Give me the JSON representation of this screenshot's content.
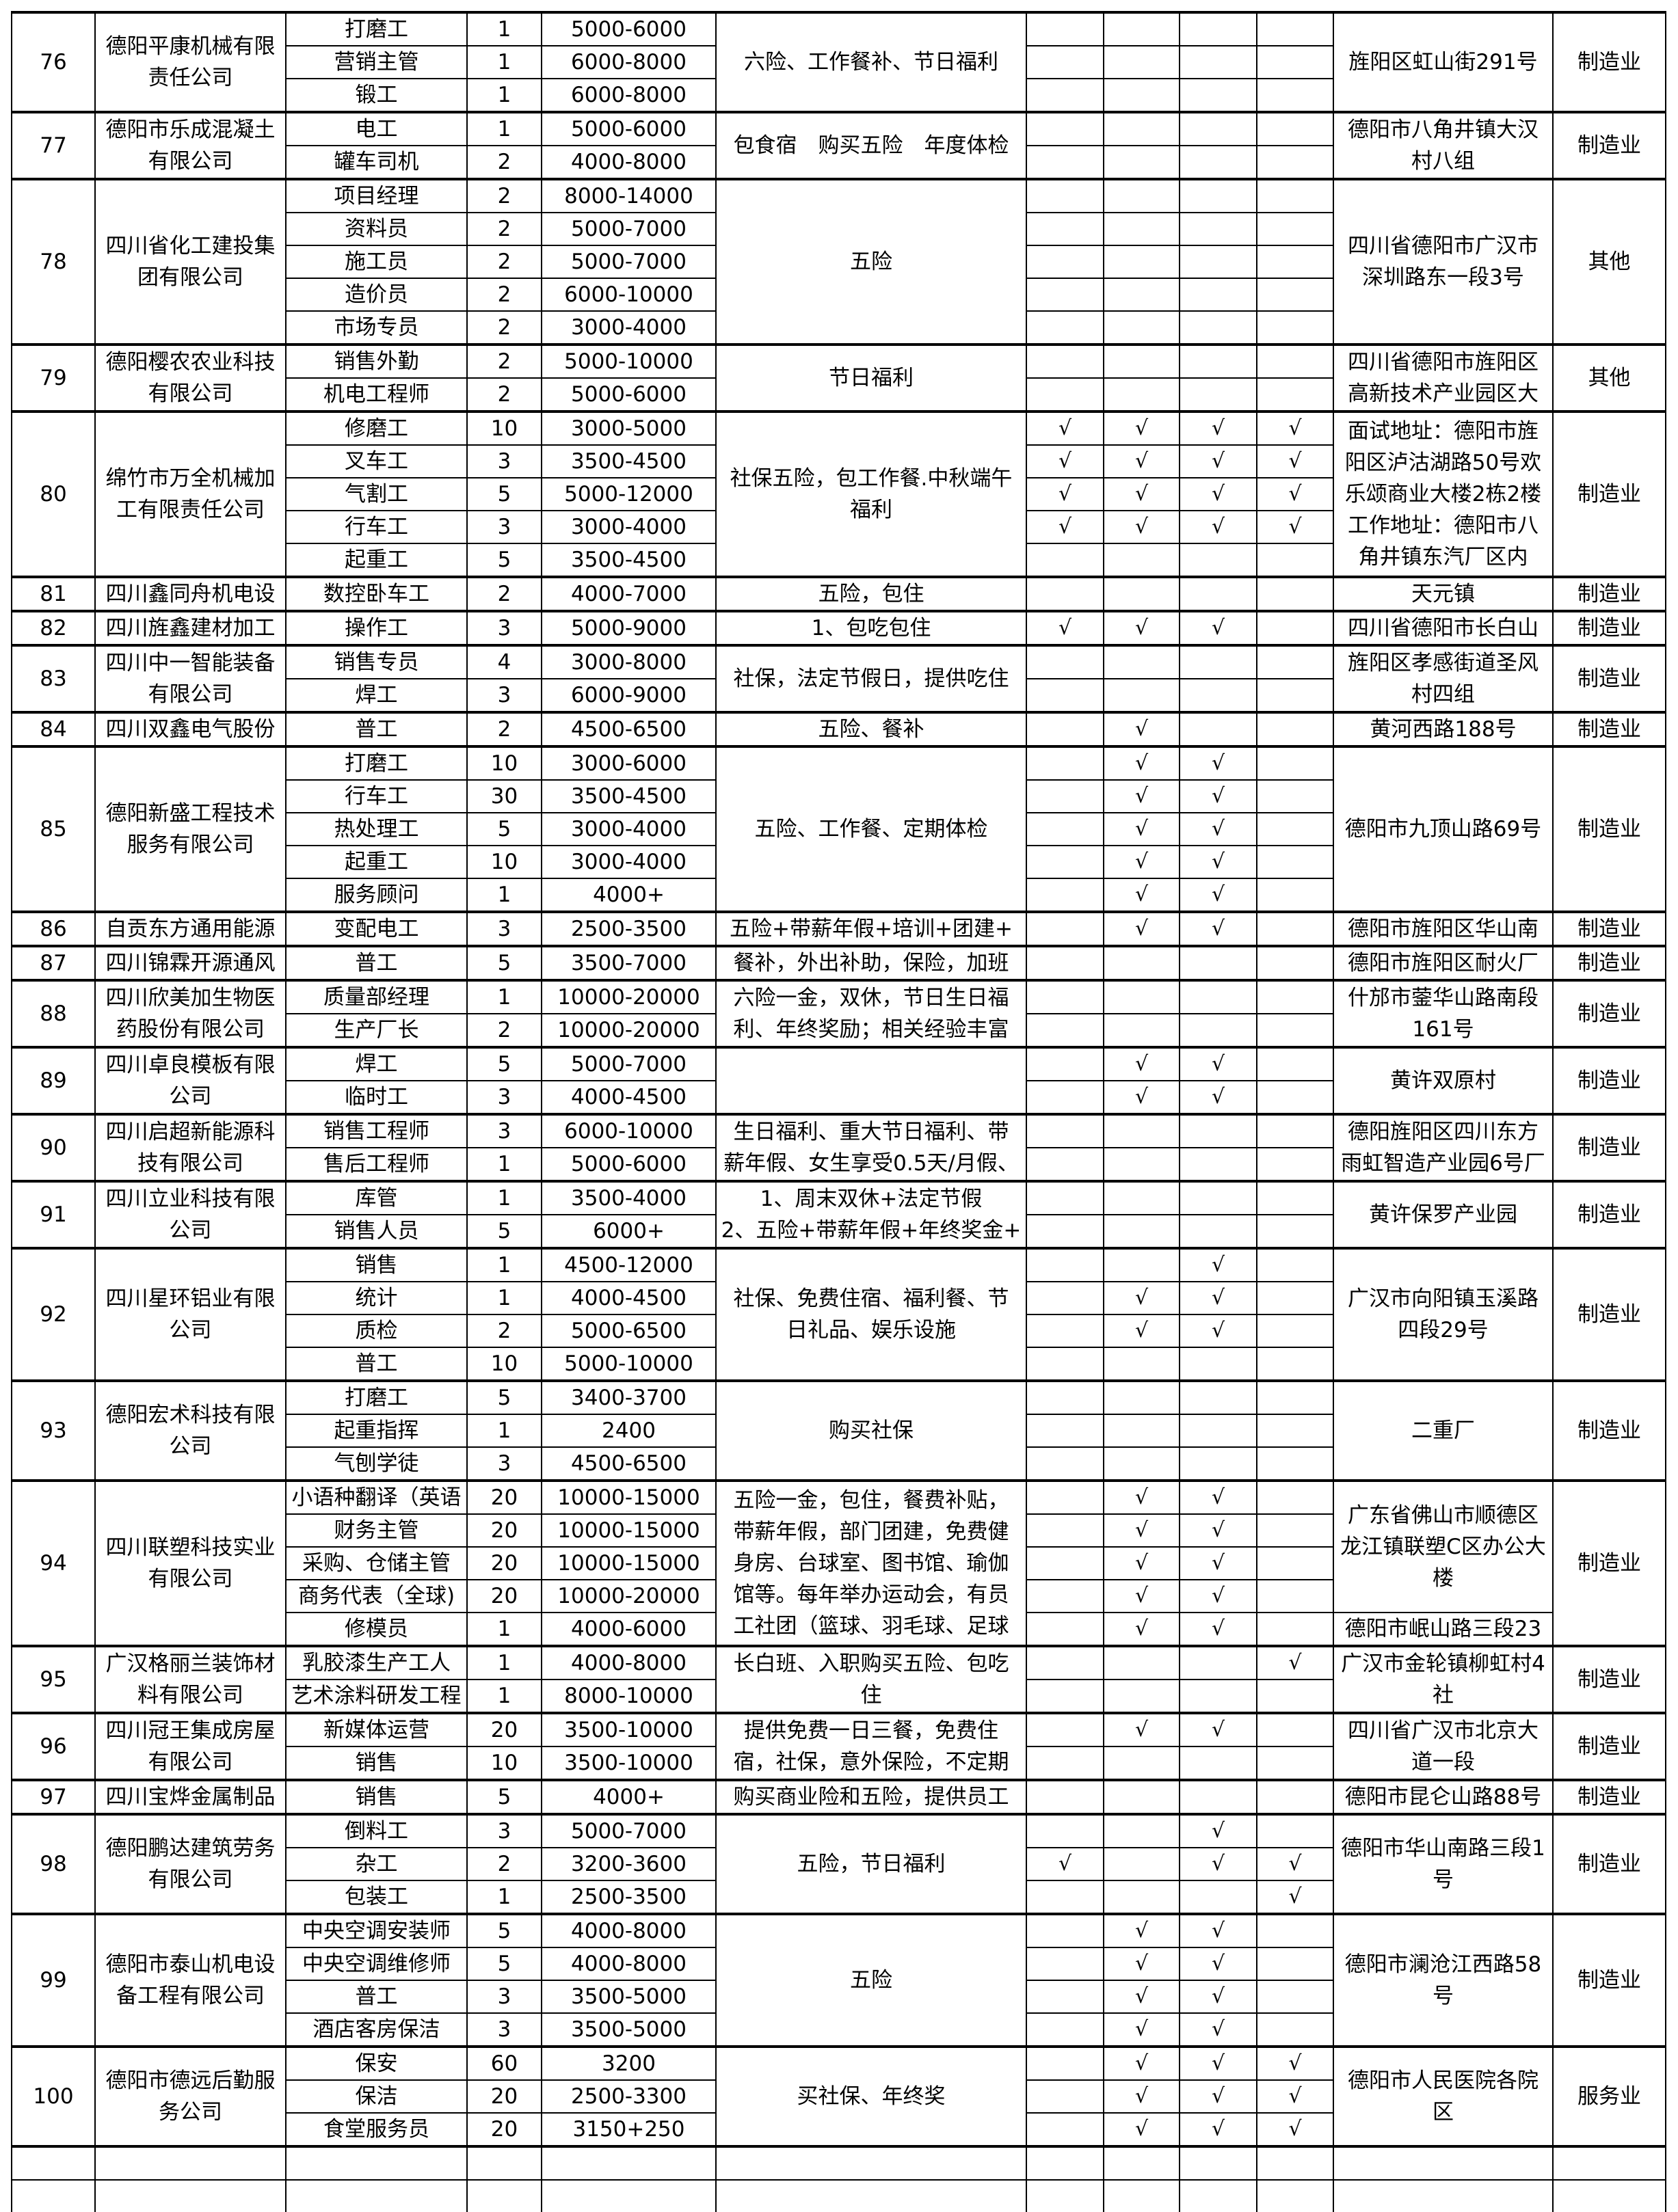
{
  "check_symbol": "√",
  "companies": [
    {
      "no": "76",
      "name": "德阳平康机械有限\n责任公司",
      "benefits": "六险、工作餐补、节日福利",
      "address": [
        {
          "text": "旌阳区虹山街291号",
          "rows": 3
        }
      ],
      "industry": "制造业",
      "positions": [
        {
          "title": "打磨工",
          "count": "1",
          "salary": "5000-6000",
          "checks": [
            0,
            0,
            0,
            0
          ]
        },
        {
          "title": "营销主管",
          "count": "1",
          "salary": "6000-8000",
          "checks": [
            0,
            0,
            0,
            0
          ]
        },
        {
          "title": "锻工",
          "count": "1",
          "salary": "6000-8000",
          "checks": [
            0,
            0,
            0,
            0
          ]
        }
      ]
    },
    {
      "no": "77",
      "name": "德阳市乐成混凝土\n有限公司",
      "benefits": "包食宿　购买五险　年度体检",
      "address": [
        {
          "text": "德阳市八角井镇大汉\n村八组",
          "rows": 2
        }
      ],
      "industry": "制造业",
      "positions": [
        {
          "title": "电工",
          "count": "1",
          "salary": "5000-6000",
          "checks": [
            0,
            0,
            0,
            0
          ]
        },
        {
          "title": "罐车司机",
          "count": "2",
          "salary": "4000-8000",
          "checks": [
            0,
            0,
            0,
            0
          ]
        }
      ]
    },
    {
      "no": "78",
      "name": "四川省化工建投集\n团有限公司",
      "benefits": "五险",
      "address": [
        {
          "text": "四川省德阳市广汉市\n深圳路东一段3号",
          "rows": 5
        }
      ],
      "industry": "其他",
      "positions": [
        {
          "title": "项目经理",
          "count": "2",
          "salary": "8000-14000",
          "checks": [
            0,
            0,
            0,
            0
          ]
        },
        {
          "title": "资料员",
          "count": "2",
          "salary": "5000-7000",
          "checks": [
            0,
            0,
            0,
            0
          ]
        },
        {
          "title": "施工员",
          "count": "2",
          "salary": "5000-7000",
          "checks": [
            0,
            0,
            0,
            0
          ]
        },
        {
          "title": "造价员",
          "count": "2",
          "salary": "6000-10000",
          "checks": [
            0,
            0,
            0,
            0
          ]
        },
        {
          "title": "市场专员",
          "count": "2",
          "salary": "3000-4000",
          "checks": [
            0,
            0,
            0,
            0
          ]
        }
      ]
    },
    {
      "no": "79",
      "name": "德阳樱农农业科技\n有限公司",
      "benefits": "节日福利",
      "address": [
        {
          "text": "四川省德阳市旌阳区\n高新技术产业园区大",
          "rows": 2
        }
      ],
      "industry": "其他",
      "positions": [
        {
          "title": "销售外勤",
          "count": "2",
          "salary": "5000-10000",
          "checks": [
            0,
            0,
            0,
            0
          ]
        },
        {
          "title": "机电工程师",
          "count": "2",
          "salary": "5000-6000",
          "checks": [
            0,
            0,
            0,
            0
          ]
        }
      ]
    },
    {
      "no": "80",
      "name": "绵竹市万全机械加\n工有限责任公司",
      "benefits": "社保五险，包工作餐.中秋端午\n福利",
      "address": [
        {
          "text": "面试地址：德阳市旌\n阳区泸沽湖路50号欢\n乐颂商业大楼2栋2楼\n工作地址：德阳市八\n角井镇东汽厂区内",
          "rows": 5
        }
      ],
      "industry": "制造业",
      "positions": [
        {
          "title": "修磨工",
          "count": "10",
          "salary": "3000-5000",
          "checks": [
            1,
            1,
            1,
            1
          ]
        },
        {
          "title": "叉车工",
          "count": "3",
          "salary": "3500-4500",
          "checks": [
            1,
            1,
            1,
            1
          ]
        },
        {
          "title": "气割工",
          "count": "5",
          "salary": "5000-12000",
          "checks": [
            1,
            1,
            1,
            1
          ]
        },
        {
          "title": "行车工",
          "count": "3",
          "salary": "3000-4000",
          "checks": [
            1,
            1,
            1,
            1
          ]
        },
        {
          "title": "起重工",
          "count": "5",
          "salary": "3500-4500",
          "checks": [
            0,
            0,
            0,
            0
          ]
        }
      ]
    },
    {
      "no": "81",
      "name": "四川鑫同舟机电设",
      "benefits": "五险，包住",
      "address": [
        {
          "text": "天元镇",
          "rows": 1
        }
      ],
      "industry": "制造业",
      "positions": [
        {
          "title": "数控卧车工",
          "count": "2",
          "salary": "4000-7000",
          "checks": [
            0,
            0,
            0,
            0
          ]
        }
      ]
    },
    {
      "no": "82",
      "name": "四川旌鑫建材加工",
      "benefits": "1、包吃包住",
      "address": [
        {
          "text": "四川省德阳市长白山",
          "rows": 1
        }
      ],
      "industry": "制造业",
      "positions": [
        {
          "title": "操作工",
          "count": "3",
          "salary": "5000-9000",
          "checks": [
            1,
            1,
            1,
            0
          ]
        }
      ]
    },
    {
      "no": "83",
      "name": "四川中一智能装备\n有限公司",
      "benefits": "社保，法定节假日，提供吃住",
      "address": [
        {
          "text": "旌阳区孝感街道圣风\n村四组",
          "rows": 2
        }
      ],
      "industry": "制造业",
      "positions": [
        {
          "title": "销售专员",
          "count": "4",
          "salary": "3000-8000",
          "checks": [
            0,
            0,
            0,
            0
          ]
        },
        {
          "title": "焊工",
          "count": "3",
          "salary": "6000-9000",
          "checks": [
            0,
            0,
            0,
            0
          ]
        }
      ]
    },
    {
      "no": "84",
      "name": "四川双鑫电气股份",
      "benefits": "五险、餐补",
      "address": [
        {
          "text": "黄河西路188号",
          "rows": 1
        }
      ],
      "industry": "制造业",
      "positions": [
        {
          "title": "普工",
          "count": "2",
          "salary": "4500-6500",
          "checks": [
            0,
            1,
            0,
            0
          ]
        }
      ]
    },
    {
      "no": "85",
      "name": "德阳新盛工程技术\n服务有限公司",
      "benefits": "五险、工作餐、定期体检",
      "address": [
        {
          "text": "德阳市九顶山路69号",
          "rows": 5
        }
      ],
      "industry": "制造业",
      "positions": [
        {
          "title": "打磨工",
          "count": "10",
          "salary": "3000-6000",
          "checks": [
            0,
            1,
            1,
            0
          ]
        },
        {
          "title": "行车工",
          "count": "30",
          "salary": "3500-4500",
          "checks": [
            0,
            1,
            1,
            0
          ]
        },
        {
          "title": "热处理工",
          "count": "5",
          "salary": "3000-4000",
          "checks": [
            0,
            1,
            1,
            0
          ]
        },
        {
          "title": "起重工",
          "count": "10",
          "salary": "3000-4000",
          "checks": [
            0,
            1,
            1,
            0
          ]
        },
        {
          "title": "服务顾问",
          "count": "1",
          "salary": "4000+",
          "checks": [
            0,
            1,
            1,
            0
          ]
        }
      ]
    },
    {
      "no": "86",
      "name": "自贡东方通用能源",
      "benefits": "五险+带薪年假+培训+团建+",
      "address": [
        {
          "text": "德阳市旌阳区华山南",
          "rows": 1
        }
      ],
      "industry": "制造业",
      "positions": [
        {
          "title": "变配电工",
          "count": "3",
          "salary": "2500-3500",
          "checks": [
            0,
            1,
            1,
            0
          ]
        }
      ]
    },
    {
      "no": "87",
      "name": "四川锦霖开源通风",
      "benefits": "餐补，外出补助，保险，加班",
      "address": [
        {
          "text": "德阳市旌阳区耐火厂",
          "rows": 1
        }
      ],
      "industry": "制造业",
      "positions": [
        {
          "title": "普工",
          "count": "5",
          "salary": "3500-7000",
          "checks": [
            0,
            0,
            0,
            0
          ]
        }
      ]
    },
    {
      "no": "88",
      "name": "四川欣美加生物医\n药股份有限公司",
      "benefits": "六险一金，双休，节日生日福\n利、年终奖励；相关经验丰富",
      "address": [
        {
          "text": "什邡市蓥华山路南段\n161号",
          "rows": 2
        }
      ],
      "industry": "制造业",
      "positions": [
        {
          "title": "质量部经理",
          "count": "1",
          "salary": "10000-20000",
          "checks": [
            0,
            0,
            0,
            0
          ]
        },
        {
          "title": "生产厂长",
          "count": "2",
          "salary": "10000-20000",
          "checks": [
            0,
            0,
            0,
            0
          ]
        }
      ]
    },
    {
      "no": "89",
      "name": "四川卓良模板有限\n公司",
      "benefits": "",
      "address": [
        {
          "text": "黄许双原村",
          "rows": 2
        }
      ],
      "industry": "制造业",
      "positions": [
        {
          "title": "焊工",
          "count": "5",
          "salary": "5000-7000",
          "checks": [
            0,
            1,
            1,
            0
          ]
        },
        {
          "title": "临时工",
          "count": "3",
          "salary": "4000-4500",
          "checks": [
            0,
            1,
            1,
            0
          ]
        }
      ]
    },
    {
      "no": "90",
      "name": "四川启超新能源科\n技有限公司",
      "benefits": "生日福利、重大节日福利、带\n薪年假、女生享受0.5天/月假、",
      "address": [
        {
          "text": "德阳旌阳区四川东方\n雨虹智造产业园6号厂",
          "rows": 2
        }
      ],
      "industry": "制造业",
      "positions": [
        {
          "title": "销售工程师",
          "count": "3",
          "salary": "6000-10000",
          "checks": [
            0,
            0,
            0,
            0
          ]
        },
        {
          "title": "售后工程师",
          "count": "1",
          "salary": "5000-6000",
          "checks": [
            0,
            0,
            0,
            0
          ]
        }
      ]
    },
    {
      "no": "91",
      "name": "四川立业科技有限\n公司",
      "benefits": "1、周末双休+法定节假\n2、五险+带薪年假+年终奖金+",
      "address": [
        {
          "text": "黄许保罗产业园",
          "rows": 2
        }
      ],
      "industry": "制造业",
      "positions": [
        {
          "title": "库管",
          "count": "1",
          "salary": "3500-4000",
          "checks": [
            0,
            0,
            0,
            0
          ]
        },
        {
          "title": "销售人员",
          "count": "5",
          "salary": "6000+",
          "checks": [
            0,
            0,
            0,
            0
          ]
        }
      ]
    },
    {
      "no": "92",
      "name": "四川星环铝业有限\n公司",
      "benefits": "社保、免费住宿、福利餐、节\n日礼品、娱乐设施",
      "address": [
        {
          "text": "广汉市向阳镇玉溪路\n四段29号",
          "rows": 4
        }
      ],
      "industry": "制造业",
      "positions": [
        {
          "title": "销售",
          "count": "1",
          "salary": "4500-12000",
          "checks": [
            0,
            0,
            1,
            0
          ]
        },
        {
          "title": "统计",
          "count": "1",
          "salary": "4000-4500",
          "checks": [
            0,
            1,
            1,
            0
          ]
        },
        {
          "title": "质检",
          "count": "2",
          "salary": "5000-6500",
          "checks": [
            0,
            1,
            1,
            0
          ]
        },
        {
          "title": "普工",
          "count": "10",
          "salary": "5000-10000",
          "checks": [
            0,
            0,
            0,
            0
          ]
        }
      ]
    },
    {
      "no": "93",
      "name": "德阳宏术科技有限\n公司",
      "benefits": "购买社保",
      "address": [
        {
          "text": "二重厂",
          "rows": 3
        }
      ],
      "industry": "制造业",
      "positions": [
        {
          "title": "打磨工",
          "count": "5",
          "salary": "3400-3700",
          "checks": [
            0,
            0,
            0,
            0
          ]
        },
        {
          "title": "起重指挥",
          "count": "1",
          "salary": "2400",
          "checks": [
            0,
            0,
            0,
            0
          ]
        },
        {
          "title": "气刨学徒",
          "count": "3",
          "salary": "4500-6500",
          "checks": [
            0,
            0,
            0,
            0
          ]
        }
      ]
    },
    {
      "no": "94",
      "name": "四川联塑科技实业\n有限公司",
      "benefits": "五险一金，包住，餐费补贴，\n带薪年假，部门团建，免费健\n身房、台球室、图书馆、瑜伽\n馆等。每年举办运动会，有员\n工社团（篮球、羽毛球、足球",
      "address": [
        {
          "text": "广东省佛山市顺德区\n龙江镇联塑C区办公大\n楼",
          "rows": 4
        },
        {
          "text": "德阳市岷山路三段23",
          "rows": 1
        }
      ],
      "industry": "制造业",
      "positions": [
        {
          "title": "小语种翻译（英语",
          "count": "20",
          "salary": "10000-15000",
          "checks": [
            0,
            1,
            1,
            0
          ]
        },
        {
          "title": "财务主管",
          "count": "20",
          "salary": "10000-15000",
          "checks": [
            0,
            1,
            1,
            0
          ]
        },
        {
          "title": "采购、仓储主管",
          "count": "20",
          "salary": "10000-15000",
          "checks": [
            0,
            1,
            1,
            0
          ]
        },
        {
          "title": "商务代表（全球)",
          "count": "20",
          "salary": "10000-20000",
          "checks": [
            0,
            1,
            1,
            0
          ]
        },
        {
          "title": "修模员",
          "count": "1",
          "salary": "4000-6000",
          "checks": [
            0,
            1,
            1,
            0
          ]
        }
      ]
    },
    {
      "no": "95",
      "name": "广汉格丽兰装饰材\n料有限公司",
      "benefits": "长白班、入职购买五险、包吃\n住",
      "address": [
        {
          "text": "广汉市金轮镇柳虹村4\n社",
          "rows": 2
        }
      ],
      "industry": "制造业",
      "positions": [
        {
          "title": "乳胶漆生产工人",
          "count": "1",
          "salary": "4000-8000",
          "checks": [
            0,
            0,
            0,
            1
          ]
        },
        {
          "title": "艺术涂料研发工程",
          "count": "1",
          "salary": "8000-10000",
          "checks": [
            0,
            0,
            0,
            0
          ]
        }
      ]
    },
    {
      "no": "96",
      "name": "四川冠王集成房屋\n有限公司",
      "benefits": "提供免费一日三餐，免费住\n宿，社保，意外保险，不定期",
      "address": [
        {
          "text": "四川省广汉市北京大\n道一段",
          "rows": 2
        }
      ],
      "industry": "制造业",
      "positions": [
        {
          "title": "新媒体运营",
          "count": "20",
          "salary": "3500-10000",
          "checks": [
            0,
            1,
            1,
            0
          ]
        },
        {
          "title": "销售",
          "count": "10",
          "salary": "3500-10000",
          "checks": [
            0,
            0,
            0,
            0
          ]
        }
      ]
    },
    {
      "no": "97",
      "name": "四川宝烨金属制品",
      "benefits": "购买商业险和五险，提供员工",
      "address": [
        {
          "text": "德阳市昆仑山路88号",
          "rows": 1
        }
      ],
      "industry": "制造业",
      "positions": [
        {
          "title": "销售",
          "count": "5",
          "salary": "4000+",
          "checks": [
            0,
            0,
            0,
            0
          ]
        }
      ]
    },
    {
      "no": "98",
      "name": "德阳鹏达建筑劳务\n有限公司",
      "benefits": "五险，节日福利",
      "address": [
        {
          "text": "德阳市华山南路三段1\n号",
          "rows": 3
        }
      ],
      "industry": "制造业",
      "positions": [
        {
          "title": "倒料工",
          "count": "3",
          "salary": "5000-7000",
          "checks": [
            0,
            0,
            1,
            0
          ]
        },
        {
          "title": "杂工",
          "count": "2",
          "salary": "3200-3600",
          "checks": [
            1,
            0,
            1,
            1
          ]
        },
        {
          "title": "包装工",
          "count": "1",
          "salary": "2500-3500",
          "checks": [
            0,
            0,
            0,
            1
          ]
        }
      ]
    },
    {
      "no": "99",
      "name": "德阳市泰山机电设\n备工程有限公司",
      "benefits": "五险",
      "address": [
        {
          "text": "德阳市澜沧江西路58\n号",
          "rows": 4
        }
      ],
      "industry": "制造业",
      "positions": [
        {
          "title": "中央空调安装师",
          "count": "5",
          "salary": "4000-8000",
          "checks": [
            0,
            1,
            1,
            0
          ]
        },
        {
          "title": "中央空调维修师",
          "count": "5",
          "salary": "4000-8000",
          "checks": [
            0,
            1,
            1,
            0
          ]
        },
        {
          "title": "普工",
          "count": "3",
          "salary": "3500-5000",
          "checks": [
            0,
            1,
            1,
            0
          ]
        },
        {
          "title": "酒店客房保洁",
          "count": "3",
          "salary": "3500-5000",
          "checks": [
            0,
            1,
            1,
            0
          ]
        }
      ]
    },
    {
      "no": "100",
      "name": "德阳市德远后勤服\n务公司",
      "benefits": "买社保、年终奖",
      "address": [
        {
          "text": "德阳市人民医院各院\n区",
          "rows": 3
        }
      ],
      "industry": "服务业",
      "positions": [
        {
          "title": "保安",
          "count": "60",
          "salary": "3200",
          "checks": [
            0,
            1,
            1,
            1
          ]
        },
        {
          "title": "保洁",
          "count": "20",
          "salary": "2500-3300",
          "checks": [
            0,
            1,
            1,
            1
          ]
        },
        {
          "title": "食堂服务员",
          "count": "20",
          "salary": "3150+250",
          "checks": [
            0,
            1,
            1,
            1
          ]
        }
      ]
    }
  ]
}
